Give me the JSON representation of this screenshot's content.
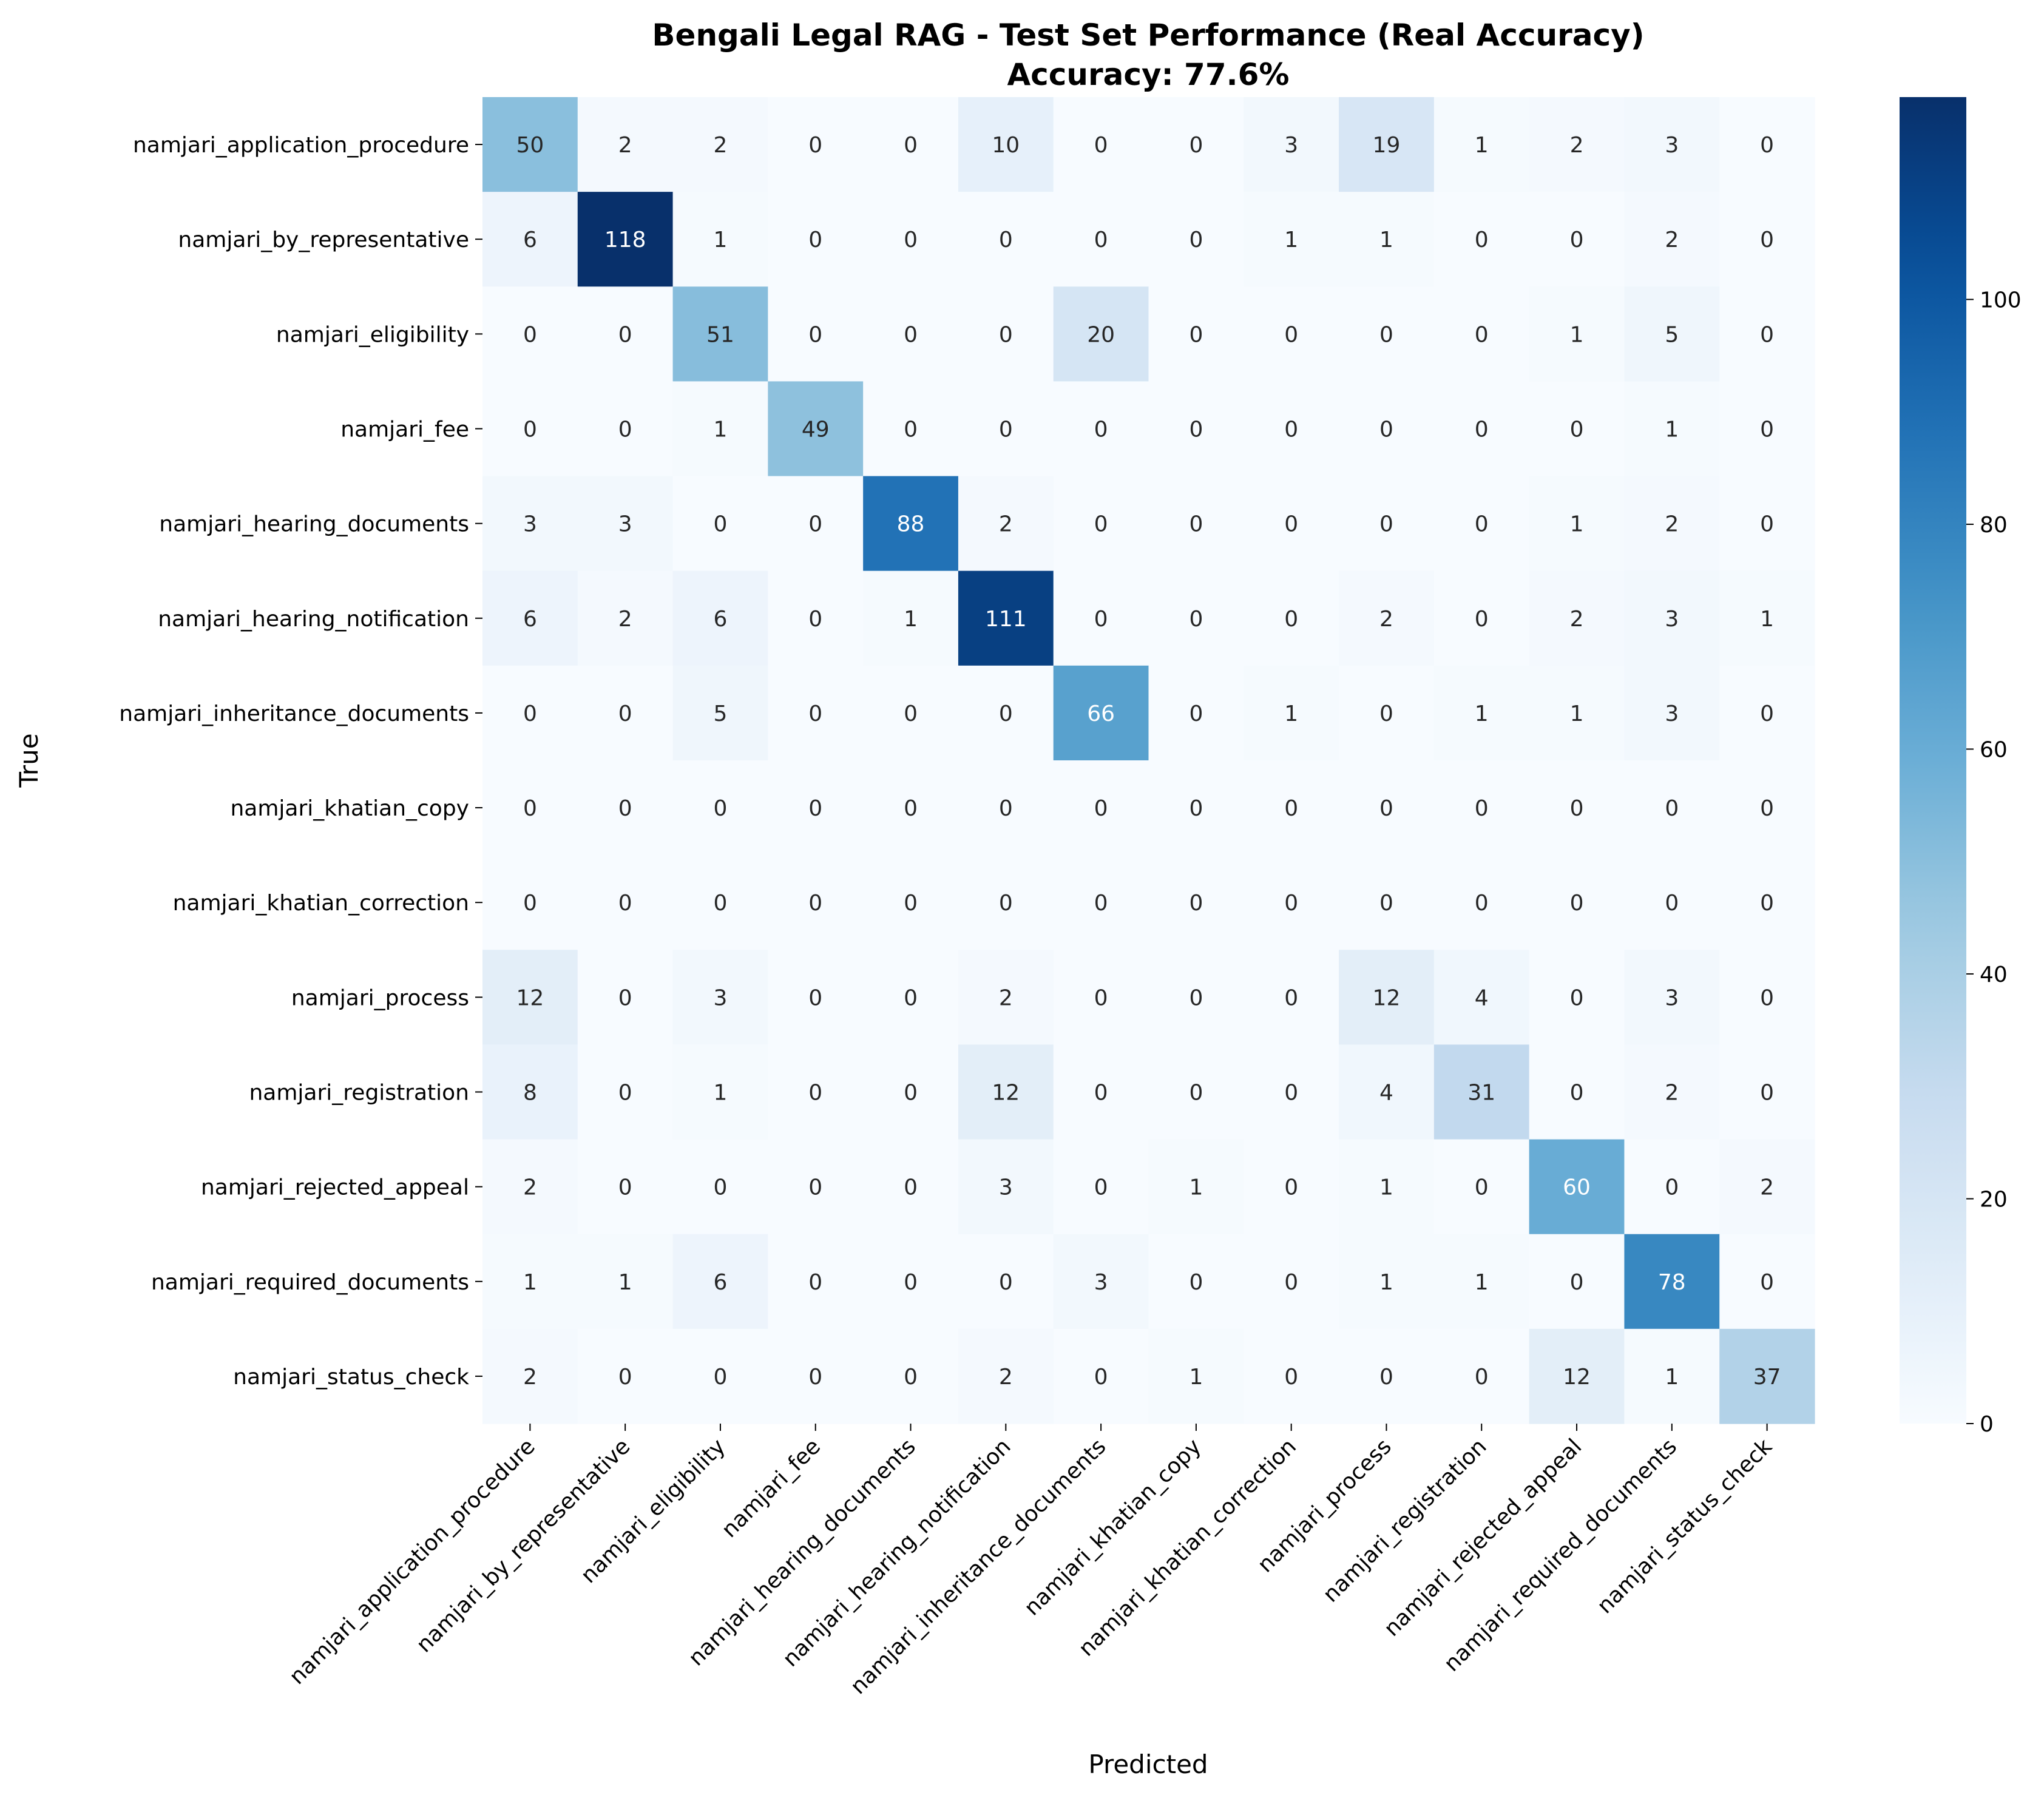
{
  "chart_data": {
    "type": "heatmap",
    "title": "Bengali Legal RAG - Test Set Performance (Real Accuracy)",
    "subtitle": "Accuracy: 77.6%",
    "xlabel": "Predicted",
    "ylabel": "True",
    "categories": [
      "namjari_application_procedure",
      "namjari_by_representative",
      "namjari_eligibility",
      "namjari_fee",
      "namjari_hearing_documents",
      "namjari_hearing_notification",
      "namjari_inheritance_documents",
      "namjari_khatian_copy",
      "namjari_khatian_correction",
      "namjari_process",
      "namjari_registration",
      "namjari_rejected_appeal",
      "namjari_required_documents",
      "namjari_status_check"
    ],
    "matrix": [
      [
        50,
        2,
        2,
        0,
        0,
        10,
        0,
        0,
        3,
        19,
        1,
        2,
        3,
        0
      ],
      [
        6,
        118,
        1,
        0,
        0,
        0,
        0,
        0,
        1,
        1,
        0,
        0,
        2,
        0
      ],
      [
        0,
        0,
        51,
        0,
        0,
        0,
        20,
        0,
        0,
        0,
        0,
        1,
        5,
        0
      ],
      [
        0,
        0,
        1,
        49,
        0,
        0,
        0,
        0,
        0,
        0,
        0,
        0,
        1,
        0
      ],
      [
        3,
        3,
        0,
        0,
        88,
        2,
        0,
        0,
        0,
        0,
        0,
        1,
        2,
        0
      ],
      [
        6,
        2,
        6,
        0,
        1,
        111,
        0,
        0,
        0,
        2,
        0,
        2,
        3,
        1
      ],
      [
        0,
        0,
        5,
        0,
        0,
        0,
        66,
        0,
        1,
        0,
        1,
        1,
        3,
        0
      ],
      [
        0,
        0,
        0,
        0,
        0,
        0,
        0,
        0,
        0,
        0,
        0,
        0,
        0,
        0
      ],
      [
        0,
        0,
        0,
        0,
        0,
        0,
        0,
        0,
        0,
        0,
        0,
        0,
        0,
        0
      ],
      [
        12,
        0,
        3,
        0,
        0,
        2,
        0,
        0,
        0,
        12,
        4,
        0,
        3,
        0
      ],
      [
        8,
        0,
        1,
        0,
        0,
        12,
        0,
        0,
        0,
        4,
        31,
        0,
        2,
        0
      ],
      [
        2,
        0,
        0,
        0,
        0,
        3,
        0,
        1,
        0,
        1,
        0,
        60,
        0,
        2
      ],
      [
        1,
        1,
        6,
        0,
        0,
        0,
        3,
        0,
        0,
        1,
        1,
        0,
        78,
        0
      ],
      [
        2,
        0,
        0,
        0,
        0,
        2,
        0,
        1,
        0,
        0,
        0,
        12,
        1,
        37
      ]
    ],
    "colormap": "Blues",
    "vmin": 0,
    "vmax": 118,
    "colorbar_ticks": [
      0,
      20,
      40,
      60,
      80,
      100
    ],
    "colors": {
      "low": "#f7fbff",
      "high": "#08306b",
      "text_dark": "#262626",
      "text_light": "#ffffff"
    }
  }
}
